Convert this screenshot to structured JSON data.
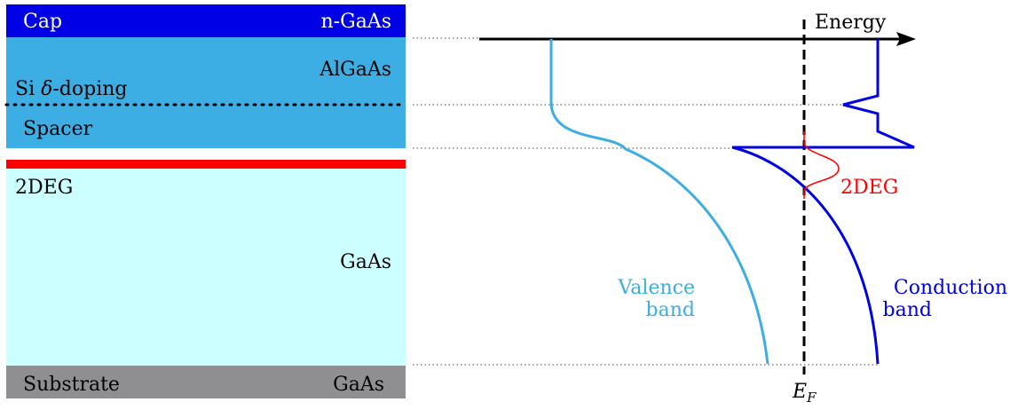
{
  "layers": {
    "cap": {
      "left_label": "Cap",
      "right_label": "n-GaAs",
      "color": "#0000e6"
    },
    "algaas": {
      "right_label": "AlGaAs",
      "color": "#3daee3"
    },
    "delta_doping": {
      "prefix": "Si ",
      "symbol": "δ",
      "suffix": "-doping"
    },
    "spacer": {
      "label": "Spacer"
    },
    "twodeg_layer": {
      "label": "2DEG",
      "color": "#ff0000"
    },
    "gaas": {
      "label": "GaAs",
      "color": "#ccffff"
    },
    "substrate": {
      "left_label": "Substrate",
      "right_label": "GaAs",
      "color": "#8f8f92"
    }
  },
  "band_diagram": {
    "axis_label": "Energy",
    "fermi_symbol": "E",
    "fermi_subscript": "F",
    "valence_label_line1": "Valence",
    "valence_label_line2": "band",
    "conduction_label_line1": "Conduction",
    "conduction_label_line2": "band",
    "twodeg_label": "2DEG",
    "colors": {
      "valence": "#3daee3",
      "conduction": "#0000e6",
      "wavefunction": "#ff0000",
      "axis": "#000000"
    }
  }
}
